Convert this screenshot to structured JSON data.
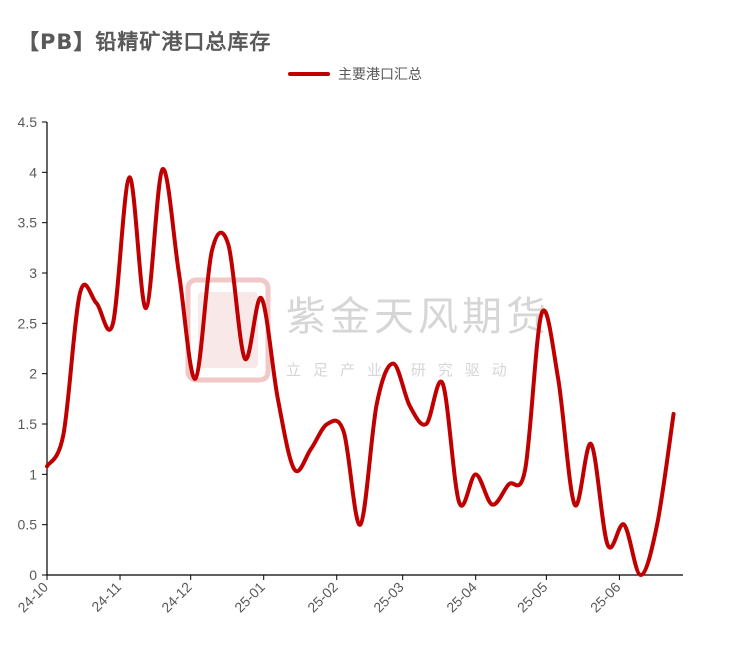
{
  "title": "【PB】铅精矿港口总库存",
  "watermark": {
    "name": "紫金天风期货",
    "slogan": "立足产业 研究驱动",
    "color": "#f2c7c7"
  },
  "colors": {
    "line": "#c00000",
    "axis": "#000000"
  },
  "chart_data": {
    "type": "line",
    "xlabel": "",
    "ylabel": "",
    "ylim": [
      0,
      4.5
    ],
    "yticks": [
      "0",
      "0.5",
      "1",
      "1.5",
      "2",
      "2.5",
      "3",
      "3.5",
      "4",
      "4.5"
    ],
    "xlim": [
      "2024-10-01",
      "2025-06-28"
    ],
    "xticks": [
      {
        "label": "24-10",
        "date": "2024-10-01"
      },
      {
        "label": "24-11",
        "date": "2024-11-01"
      },
      {
        "label": "24-12",
        "date": "2024-12-01"
      },
      {
        "label": "25-01",
        "date": "2025-01-01"
      },
      {
        "label": "25-02",
        "date": "2025-02-01"
      },
      {
        "label": "25-03",
        "date": "2025-03-01"
      },
      {
        "label": "25-04",
        "date": "2025-04-01"
      },
      {
        "label": "25-05",
        "date": "2025-05-01"
      },
      {
        "label": "25-06",
        "date": "2025-06-01"
      }
    ],
    "grid": false,
    "legend": "top-center",
    "series": [
      {
        "name": "主要港口汇总",
        "points": [
          {
            "x": "2024-10-01",
            "y": 1.08
          },
          {
            "x": "2024-10-08",
            "y": 1.4
          },
          {
            "x": "2024-10-15",
            "y": 2.8
          },
          {
            "x": "2024-10-22",
            "y": 2.7
          },
          {
            "x": "2024-10-29",
            "y": 2.5
          },
          {
            "x": "2024-11-05",
            "y": 3.95
          },
          {
            "x": "2024-11-12",
            "y": 2.65
          },
          {
            "x": "2024-11-19",
            "y": 4.03
          },
          {
            "x": "2024-11-26",
            "y": 3.0
          },
          {
            "x": "2024-12-03",
            "y": 1.95
          },
          {
            "x": "2024-12-10",
            "y": 3.22
          },
          {
            "x": "2024-12-17",
            "y": 3.28
          },
          {
            "x": "2024-12-24",
            "y": 2.15
          },
          {
            "x": "2024-12-31",
            "y": 2.75
          },
          {
            "x": "2025-01-07",
            "y": 1.75
          },
          {
            "x": "2025-01-14",
            "y": 1.05
          },
          {
            "x": "2025-01-21",
            "y": 1.25
          },
          {
            "x": "2025-01-28",
            "y": 1.5
          },
          {
            "x": "2025-02-04",
            "y": 1.42
          },
          {
            "x": "2025-02-11",
            "y": 0.5
          },
          {
            "x": "2025-02-18",
            "y": 1.7
          },
          {
            "x": "2025-02-25",
            "y": 2.1
          },
          {
            "x": "2025-03-04",
            "y": 1.68
          },
          {
            "x": "2025-03-11",
            "y": 1.5
          },
          {
            "x": "2025-03-18",
            "y": 1.9
          },
          {
            "x": "2025-03-25",
            "y": 0.72
          },
          {
            "x": "2025-04-01",
            "y": 1.0
          },
          {
            "x": "2025-04-08",
            "y": 0.7
          },
          {
            "x": "2025-04-15",
            "y": 0.9
          },
          {
            "x": "2025-04-22",
            "y": 1.05
          },
          {
            "x": "2025-04-29",
            "y": 2.6
          },
          {
            "x": "2025-05-06",
            "y": 1.95
          },
          {
            "x": "2025-05-13",
            "y": 0.7
          },
          {
            "x": "2025-05-20",
            "y": 1.3
          },
          {
            "x": "2025-05-27",
            "y": 0.3
          },
          {
            "x": "2025-06-03",
            "y": 0.5
          },
          {
            "x": "2025-06-10",
            "y": 0.0
          },
          {
            "x": "2025-06-17",
            "y": 0.5
          },
          {
            "x": "2025-06-24",
            "y": 1.6
          }
        ]
      }
    ]
  }
}
